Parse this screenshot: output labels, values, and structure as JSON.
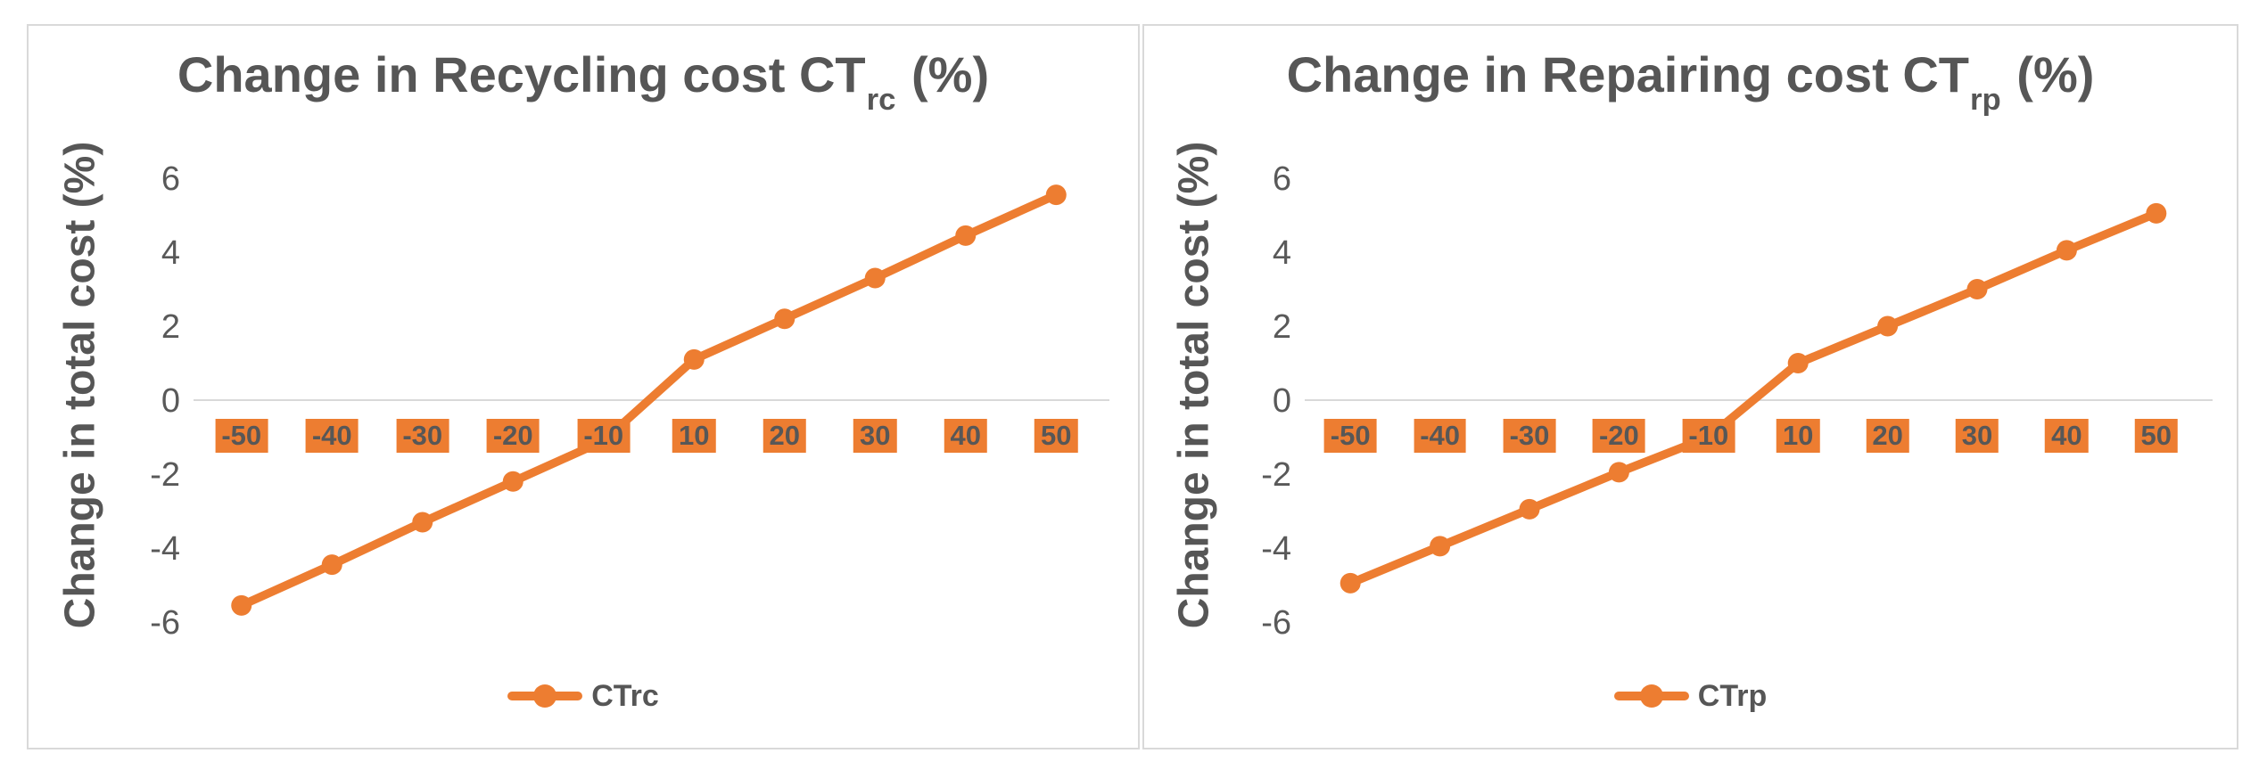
{
  "page": {
    "background": "#ffffff",
    "panel_border_color": "#d9d9d9"
  },
  "chart_data": [
    {
      "type": "line",
      "title": "Change in Recycling cost CTrc (%)",
      "title_main": "Change in Recycling cost CT",
      "title_sub": "rc",
      "title_tail": " (%)",
      "ylabel": "Change in total cost (%)",
      "xlabel": "",
      "categories": [
        "-50",
        "-40",
        "-30",
        "-20",
        "-10",
        "10",
        "20",
        "30",
        "40",
        "50"
      ],
      "series": [
        {
          "name": "CTrc",
          "values": [
            -5.55,
            -4.45,
            -3.3,
            -2.2,
            -1.1,
            1.1,
            2.2,
            3.3,
            4.45,
            5.55
          ]
        }
      ],
      "ylim": [
        -6,
        6
      ],
      "yticks": [
        6,
        4,
        2,
        0,
        -2,
        -4,
        -6
      ],
      "grid": false,
      "legend_position": "bottom",
      "series_color": "#ED7D31",
      "xtick_bg": "#ED7D31",
      "text_color": "#595959",
      "axis_line_color": "#d9d9d9"
    },
    {
      "type": "line",
      "title": "Change in Repairing cost CTrp (%)",
      "title_main": "Change in Repairing cost CT",
      "title_sub": "rp",
      "title_tail": " (%)",
      "ylabel": "Change in total cost (%)",
      "xlabel": "",
      "categories": [
        "-50",
        "-40",
        "-30",
        "-20",
        "-10",
        "10",
        "20",
        "30",
        "40",
        "50"
      ],
      "series": [
        {
          "name": "CTrp",
          "values": [
            -4.95,
            -3.95,
            -2.95,
            -1.95,
            -1.0,
            1.0,
            2.0,
            3.0,
            4.05,
            5.05
          ]
        }
      ],
      "ylim": [
        -6,
        6
      ],
      "yticks": [
        6,
        4,
        2,
        0,
        -2,
        -4,
        -6
      ],
      "grid": false,
      "legend_position": "bottom",
      "series_color": "#ED7D31",
      "xtick_bg": "#ED7D31",
      "text_color": "#595959",
      "axis_line_color": "#d9d9d9"
    }
  ]
}
